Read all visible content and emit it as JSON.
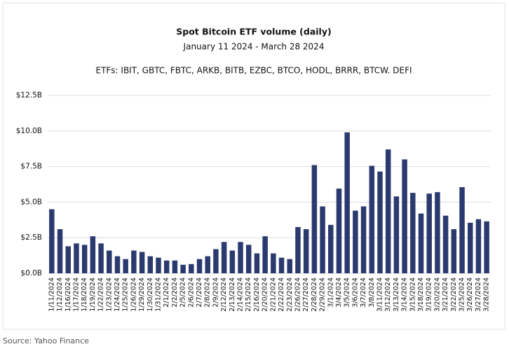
{
  "chart_data": {
    "type": "bar",
    "title": "Spot Bitcoin ETF volume (daily)",
    "subtitle": "January 11 2024 - March 28 2024",
    "note": "ETFs: IBIT, GBTC,  FBTC, ARKB, BITB, EZBC, BTCO, HODL, BRRR, BTCW. DEFI",
    "source": "Source: Yahoo Finance",
    "color": "#2b3a6e",
    "grid": true,
    "ylim": [
      0,
      12.5
    ],
    "yticks": [
      {
        "value": 0,
        "label": "$0.0B"
      },
      {
        "value": 2.5,
        "label": "$2.5B"
      },
      {
        "value": 5,
        "label": "$5.0B"
      },
      {
        "value": 7.5,
        "label": "$7.5B"
      },
      {
        "value": 10,
        "label": "$10.0B"
      },
      {
        "value": 12.5,
        "label": "$12.5B"
      }
    ],
    "categories": [
      "1/11/2024",
      "1/12/2024",
      "1/16/2024",
      "1/17/2024",
      "1/18/2024",
      "1/19/2024",
      "1/22/2024",
      "1/23/2024",
      "1/24/2024",
      "1/25/2024",
      "1/26/2024",
      "1/29/2024",
      "1/30/2024",
      "1/31/2024",
      "2/1/2024",
      "2/2/2024",
      "2/5/2024",
      "2/6/2024",
      "2/7/2024",
      "2/8/2024",
      "2/9/2024",
      "2/12/2024",
      "2/13/2024",
      "2/14/2024",
      "2/15/2024",
      "2/16/2024",
      "2/20/2024",
      "2/21/2024",
      "2/22/2024",
      "2/23/2024",
      "2/26/2024",
      "2/27/2024",
      "2/28/2024",
      "2/29/2024",
      "3/1/2024",
      "3/4/2024",
      "3/5/2024",
      "3/6/2024",
      "3/7/2024",
      "3/8/2024",
      "3/11/2024",
      "3/12/2024",
      "3/13/2024",
      "3/14/2024",
      "3/15/2024",
      "3/18/2024",
      "3/19/2024",
      "3/20/2024",
      "3/21/2024",
      "3/22/2024",
      "3/25/2024",
      "3/26/2024",
      "3/27/2024",
      "3/28/2024"
    ],
    "values": [
      4.5,
      3.1,
      1.9,
      2.1,
      2.0,
      2.6,
      2.1,
      1.6,
      1.2,
      1.0,
      1.6,
      1.5,
      1.2,
      1.1,
      0.9,
      0.9,
      0.6,
      0.65,
      1.0,
      1.2,
      1.7,
      2.2,
      1.6,
      2.2,
      2.0,
      1.4,
      2.6,
      1.4,
      1.1,
      1.0,
      3.25,
      3.1,
      7.6,
      4.7,
      3.4,
      5.95,
      9.9,
      4.4,
      4.7,
      7.55,
      7.15,
      8.7,
      5.4,
      8.0,
      5.65,
      4.2,
      5.6,
      5.7,
      4.05,
      3.1,
      6.05,
      3.55,
      3.8,
      3.65
    ]
  }
}
